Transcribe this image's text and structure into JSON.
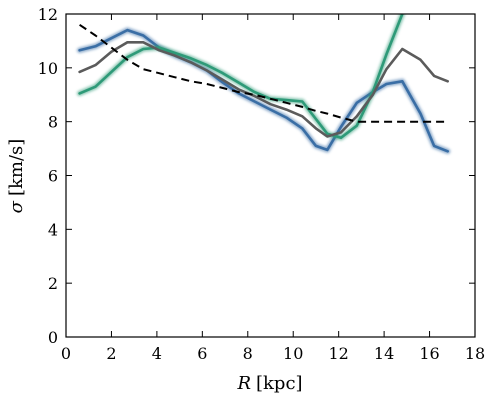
{
  "chart_data": {
    "type": "line",
    "xlim": [
      0,
      18
    ],
    "ylim": [
      0,
      12
    ],
    "xticks": [
      "0",
      "2",
      "4",
      "6",
      "8",
      "10",
      "12",
      "14",
      "16",
      "18"
    ],
    "yticks": [
      "0",
      "2",
      "4",
      "6",
      "8",
      "10",
      "12"
    ],
    "xlabel_symbol": "R",
    "xlabel_unit": "[kpc]",
    "ylabel_symbol": "σ",
    "ylabel_unit": "[km/s]",
    "grid": false,
    "legend": "none",
    "series": [
      {
        "color": "#3a6ea5",
        "style": "solid-blurred",
        "x": [
          0.6,
          1.3,
          2.0,
          2.7,
          3.4,
          4.1,
          4.8,
          5.5,
          6.2,
          6.9,
          7.6,
          8.3,
          9.0,
          9.7,
          10.4,
          11.0,
          11.5,
          12.1,
          12.8,
          13.5,
          14.1,
          14.8,
          15.6,
          16.2,
          16.8
        ],
        "y": [
          10.65,
          10.8,
          11.1,
          11.4,
          11.2,
          10.75,
          10.45,
          10.2,
          9.9,
          9.45,
          9.05,
          8.75,
          8.45,
          8.15,
          7.75,
          7.1,
          6.95,
          7.8,
          8.7,
          9.1,
          9.4,
          9.5,
          8.3,
          7.1,
          6.9
        ]
      },
      {
        "color": "#2e9a78",
        "style": "solid-blurred",
        "x": [
          0.6,
          1.3,
          2.0,
          2.7,
          3.4,
          4.1,
          4.8,
          5.5,
          6.2,
          6.9,
          7.6,
          8.3,
          9.0,
          9.7,
          10.4,
          11.0,
          11.5,
          12.1,
          12.8,
          13.5,
          14.1,
          14.8
        ],
        "y": [
          9.05,
          9.3,
          9.85,
          10.4,
          10.7,
          10.75,
          10.55,
          10.35,
          10.1,
          9.8,
          9.45,
          9.1,
          8.85,
          8.8,
          8.75,
          8.1,
          7.55,
          7.4,
          7.85,
          9.1,
          10.5,
          12.0
        ]
      },
      {
        "color": "#5b5b5b",
        "style": "solid",
        "x": [
          0.6,
          1.3,
          2.0,
          2.7,
          3.4,
          4.1,
          4.8,
          5.5,
          6.2,
          6.9,
          7.6,
          8.3,
          9.0,
          9.7,
          10.4,
          11.0,
          11.5,
          12.1,
          12.8,
          13.5,
          14.1,
          14.8,
          15.6,
          16.2,
          16.8
        ],
        "y": [
          9.85,
          10.1,
          10.6,
          10.95,
          10.95,
          10.65,
          10.45,
          10.2,
          9.9,
          9.55,
          9.2,
          8.95,
          8.65,
          8.45,
          8.2,
          7.75,
          7.45,
          7.6,
          8.2,
          9.0,
          9.95,
          10.7,
          10.3,
          9.7,
          9.5
        ]
      },
      {
        "color": "#000000",
        "style": "dashed",
        "x": [
          0.6,
          1.3,
          2.0,
          2.7,
          3.4,
          4.1,
          4.8,
          5.5,
          6.2,
          6.9,
          7.6,
          8.3,
          9.0,
          9.7,
          10.4,
          11.0,
          11.5,
          12.1,
          12.8,
          13.5,
          14.1,
          14.8,
          15.6,
          16.2,
          16.8
        ],
        "y": [
          11.6,
          11.2,
          10.75,
          10.3,
          9.95,
          9.8,
          9.65,
          9.5,
          9.4,
          9.25,
          9.1,
          9.0,
          8.85,
          8.7,
          8.55,
          8.4,
          8.3,
          8.15,
          8.0,
          8.0,
          8.0,
          8.0,
          8.0,
          8.0,
          8.0
        ]
      }
    ]
  }
}
